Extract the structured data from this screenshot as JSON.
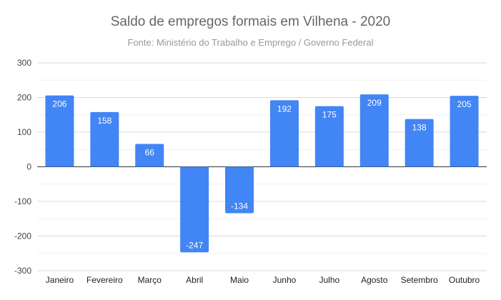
{
  "chart_data": {
    "type": "bar",
    "title": "Saldo de empregos formais em Vilhena - 2020",
    "subtitle": "Fonte: Ministério do Trabalho e Emprego / Governo Federal",
    "categories": [
      "Janeiro",
      "Fevereiro",
      "Março",
      "Abril",
      "Maio",
      "Junho",
      "Julho",
      "Agosto",
      "Setembro",
      "Outubro"
    ],
    "values": [
      206,
      158,
      66,
      -247,
      -134,
      192,
      175,
      209,
      138,
      205
    ],
    "ylim": [
      -300,
      300
    ],
    "yticks": [
      300,
      200,
      100,
      0,
      -100,
      -200,
      -300
    ],
    "xlabel": "",
    "ylabel": "",
    "grid": true,
    "legend": "none",
    "bar_color": "#4285F4",
    "data_label_color": "#ffffff"
  }
}
